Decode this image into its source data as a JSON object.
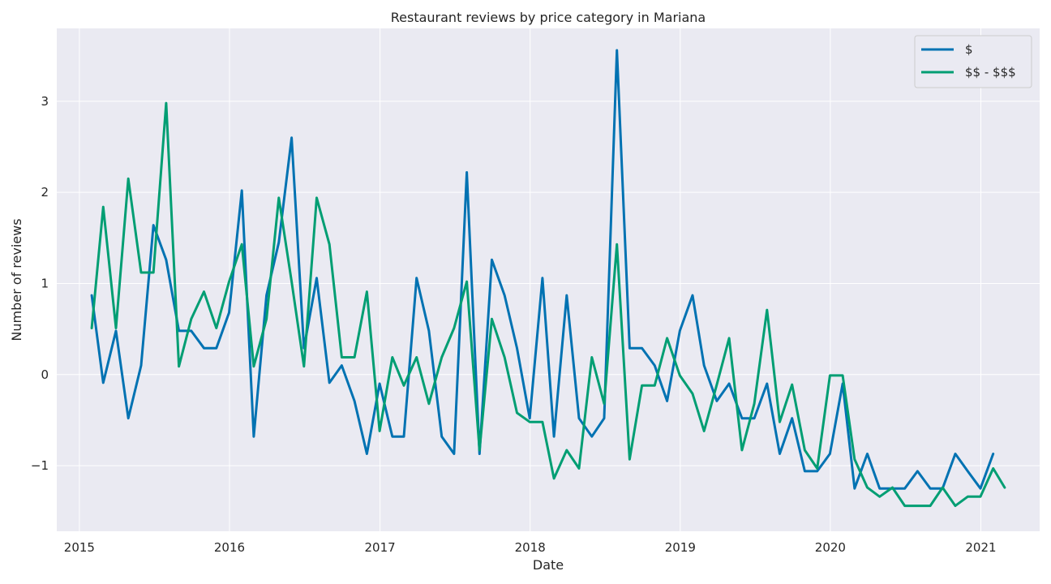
{
  "chart_data": {
    "type": "line",
    "title": "Restaurant reviews by price category in Mariana",
    "xlabel": "Date",
    "ylabel": "Number of reviews",
    "x_ticks": [
      "2015",
      "2016",
      "2017",
      "2018",
      "2019",
      "2020",
      "2021"
    ],
    "y_ticks": [
      "−1",
      "0",
      "1",
      "2",
      "3"
    ],
    "xlim": [
      "2014-11-07",
      "2021-05-24"
    ],
    "ylim": [
      -1.72,
      3.8
    ],
    "grid": true,
    "legend_position": "top-right",
    "x": [
      "2015-01-31",
      "2015-02-28",
      "2015-03-31",
      "2015-04-30",
      "2015-05-31",
      "2015-06-30",
      "2015-07-31",
      "2015-08-31",
      "2015-09-30",
      "2015-10-31",
      "2015-11-30",
      "2015-12-31",
      "2016-01-31",
      "2016-02-29",
      "2016-03-31",
      "2016-04-30",
      "2016-05-31",
      "2016-06-30",
      "2016-07-31",
      "2016-08-31",
      "2016-09-30",
      "2016-10-31",
      "2016-11-30",
      "2016-12-31",
      "2017-01-31",
      "2017-02-28",
      "2017-03-31",
      "2017-04-30",
      "2017-05-31",
      "2017-06-30",
      "2017-07-31",
      "2017-08-31",
      "2017-09-30",
      "2017-10-31",
      "2017-11-30",
      "2017-12-31",
      "2018-01-31",
      "2018-02-28",
      "2018-03-31",
      "2018-04-30",
      "2018-05-31",
      "2018-06-30",
      "2018-07-31",
      "2018-08-31",
      "2018-09-30",
      "2018-10-31",
      "2018-11-30",
      "2018-12-31",
      "2019-01-31",
      "2019-02-28",
      "2019-03-31",
      "2019-04-30",
      "2019-05-31",
      "2019-06-30",
      "2019-07-31",
      "2019-08-31",
      "2019-09-30",
      "2019-10-31",
      "2019-11-30",
      "2019-12-31",
      "2020-01-31",
      "2020-02-29",
      "2020-03-31",
      "2020-04-30",
      "2020-05-31",
      "2020-06-30",
      "2020-07-31",
      "2020-08-31",
      "2020-09-30",
      "2020-10-31",
      "2020-11-30",
      "2020-12-31",
      "2021-01-31",
      "2021-02-28"
    ],
    "series": [
      {
        "name": "$",
        "color": "#0072b2",
        "values": [
          0.87,
          -0.09,
          0.48,
          -0.48,
          0.1,
          1.64,
          1.26,
          0.48,
          0.48,
          0.29,
          0.29,
          0.68,
          2.02,
          -0.68,
          0.87,
          1.45,
          2.6,
          0.29,
          1.06,
          -0.09,
          0.1,
          -0.29,
          -0.87,
          -0.1,
          -0.68,
          -0.68,
          1.06,
          0.48,
          -0.68,
          -0.87,
          2.22,
          -0.87,
          1.26,
          0.87,
          0.29,
          -0.48,
          1.06,
          -0.68,
          0.87,
          -0.48,
          -0.68,
          -0.48,
          3.56,
          0.29,
          0.29,
          0.1,
          -0.29,
          0.48,
          0.87,
          0.1,
          -0.29,
          -0.1,
          -0.48,
          -0.48,
          -0.1,
          -0.87,
          -0.48,
          -1.06,
          -1.06,
          -0.87,
          -0.1,
          -1.25,
          -0.87,
          -1.25,
          -1.25,
          -1.25,
          -1.06,
          -1.25,
          -1.25,
          -0.87,
          -1.06,
          -1.25,
          -0.87,
          null
        ]
      },
      {
        "name": "$$ - $$$",
        "color": "#009e73",
        "values": [
          0.51,
          1.84,
          0.51,
          2.15,
          1.12,
          1.12,
          2.98,
          0.09,
          0.61,
          0.91,
          0.51,
          1.02,
          1.43,
          0.09,
          0.61,
          1.94,
          1.02,
          0.09,
          1.94,
          1.43,
          0.19,
          0.19,
          0.91,
          -0.62,
          0.19,
          -0.12,
          0.19,
          -0.32,
          0.19,
          0.51,
          1.02,
          -0.83,
          0.61,
          0.19,
          -0.42,
          -0.52,
          -0.52,
          -1.14,
          -0.83,
          -1.03,
          0.19,
          -0.32,
          1.43,
          -0.93,
          -0.12,
          -0.12,
          0.4,
          -0.01,
          -0.21,
          -0.62,
          -0.11,
          0.4,
          -0.83,
          -0.32,
          0.71,
          -0.52,
          -0.11,
          -0.83,
          -1.03,
          -0.01,
          -0.01,
          -0.93,
          -1.24,
          -1.34,
          -1.24,
          -1.44,
          -1.44,
          -1.44,
          -1.24,
          -1.44,
          -1.34,
          -1.34,
          -1.03,
          -1.24
        ]
      }
    ]
  }
}
